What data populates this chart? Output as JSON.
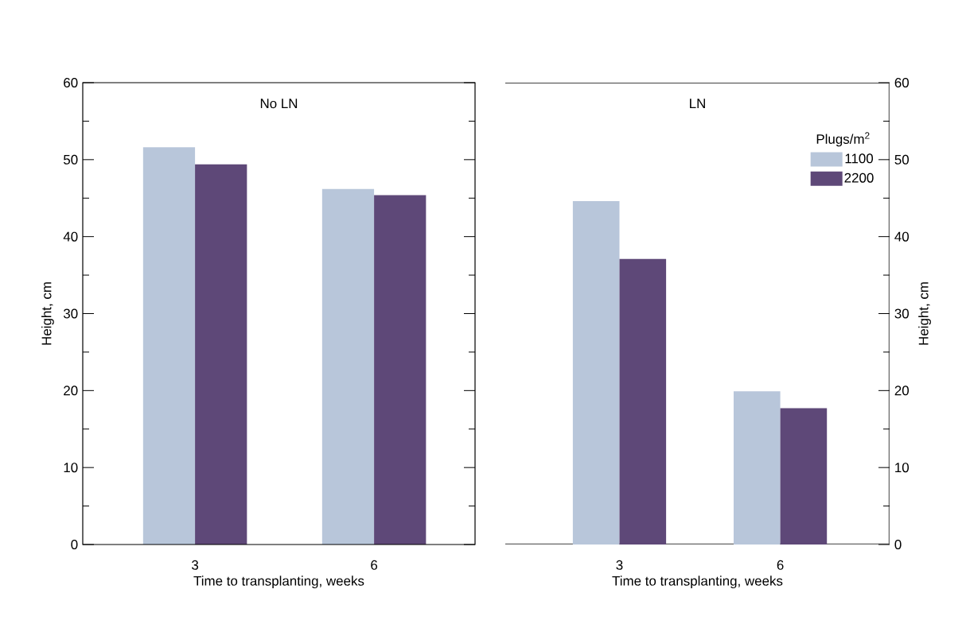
{
  "chart_data": [
    {
      "type": "bar",
      "title": "No LN",
      "xlabel": "Time to transplanting, weeks",
      "ylabel": "Height, cm",
      "categories": [
        "3",
        "6"
      ],
      "series": [
        {
          "color": "#b8c6da",
          "values": [
            51.6,
            46.2
          ]
        },
        {
          "color": "#5e4878",
          "values": [
            49.4,
            45.4
          ]
        }
      ],
      "ylim": [
        0,
        60
      ],
      "yticks": [
        0,
        {
          "value": 5,
          "label": null
        },
        10,
        {
          "value": 15,
          "label": null
        },
        20,
        {
          "value": 25,
          "label": null
        },
        30,
        {
          "value": 35,
          "label": null
        },
        40,
        {
          "value": 45,
          "label": null
        },
        50,
        {
          "value": 55,
          "label": null
        },
        60
      ],
      "legend": false
    },
    {
      "type": "bar",
      "title": "LN",
      "xlabel": "Time to transplanting, weeks",
      "ylabel": "Height, cm",
      "categories": [
        "3",
        "6"
      ],
      "series": [
        {
          "name": "1100",
          "color": "#b8c6da",
          "values": [
            44.6,
            19.9
          ]
        },
        {
          "name": "2200",
          "color": "#5e4878",
          "values": [
            37.1,
            17.7
          ]
        }
      ],
      "ylim": [
        0,
        60
      ],
      "yticks": [
        0,
        {
          "value": 5,
          "label": null
        },
        10,
        {
          "value": 15,
          "label": null
        },
        20,
        {
          "value": 25,
          "label": null
        },
        30,
        {
          "value": 35,
          "label": null
        },
        40,
        {
          "value": 45,
          "label": null
        },
        50,
        {
          "value": 55,
          "label": null
        },
        60
      ],
      "legend": "top right",
      "legend_title": "Plugs/m$^{2}$"
    }
  ]
}
